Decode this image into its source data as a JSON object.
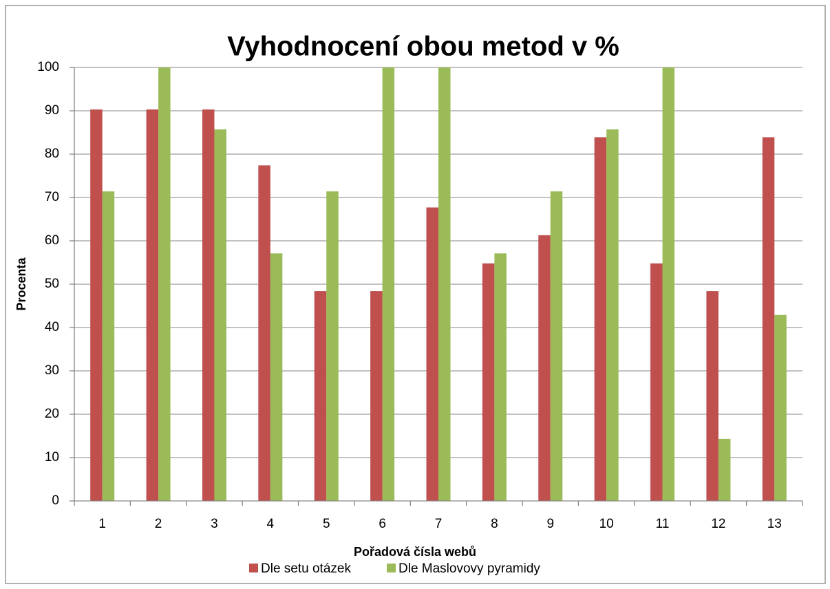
{
  "chart_data": {
    "type": "bar",
    "title": "Vyhodnocení obou metod  v %",
    "x_label": "Pořadová čísla webů",
    "y_label": "Procenta",
    "categories": [
      "1",
      "2",
      "3",
      "4",
      "5",
      "6",
      "7",
      "8",
      "9",
      "10",
      "11",
      "12",
      "13"
    ],
    "series": [
      {
        "name": "Dle setu otázek",
        "color": "#c0504d",
        "values": [
          90.3,
          90.3,
          90.3,
          77.4,
          48.4,
          48.4,
          67.7,
          54.8,
          61.3,
          83.9,
          54.8,
          48.4,
          83.9
        ]
      },
      {
        "name": "Dle Maslovovy pyramidy",
        "color": "#9bbb59",
        "values": [
          71.4,
          100,
          85.7,
          57.1,
          71.4,
          100,
          100,
          57.1,
          71.4,
          85.7,
          100,
          14.3,
          42.9
        ]
      }
    ],
    "ylim": [
      0,
      100
    ],
    "yticks": [
      0,
      10,
      20,
      30,
      40,
      50,
      60,
      70,
      80,
      90,
      100
    ],
    "grid": true,
    "legend": "bottom"
  }
}
